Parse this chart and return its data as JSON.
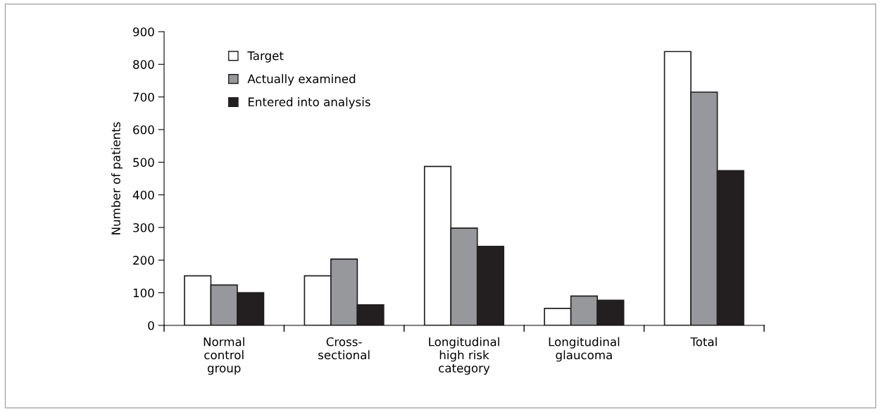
{
  "chart_data": {
    "type": "bar",
    "ylabel": "Number of patients",
    "categories": [
      "Normal\ncontrol\ngroup",
      "Cross-\nsectional",
      "Longitudinal\nhigh risk\ncategory",
      "Longitudinal\nglaucoma",
      "Total"
    ],
    "series": [
      {
        "name": "Target",
        "color": "#ffffff",
        "values": [
          152,
          152,
          487,
          52,
          839
        ]
      },
      {
        "name": "Actually examined",
        "color": "#97989c",
        "values": [
          124,
          203,
          298,
          90,
          715
        ]
      },
      {
        "name": "Entered into analysis",
        "color": "#231f20",
        "values": [
          100,
          63,
          242,
          77,
          474
        ]
      }
    ],
    "ylim": [
      0,
      900
    ],
    "yticks": [
      0,
      100,
      200,
      300,
      400,
      500,
      600,
      700,
      800,
      900
    ],
    "grid": false,
    "legend": "top left"
  }
}
